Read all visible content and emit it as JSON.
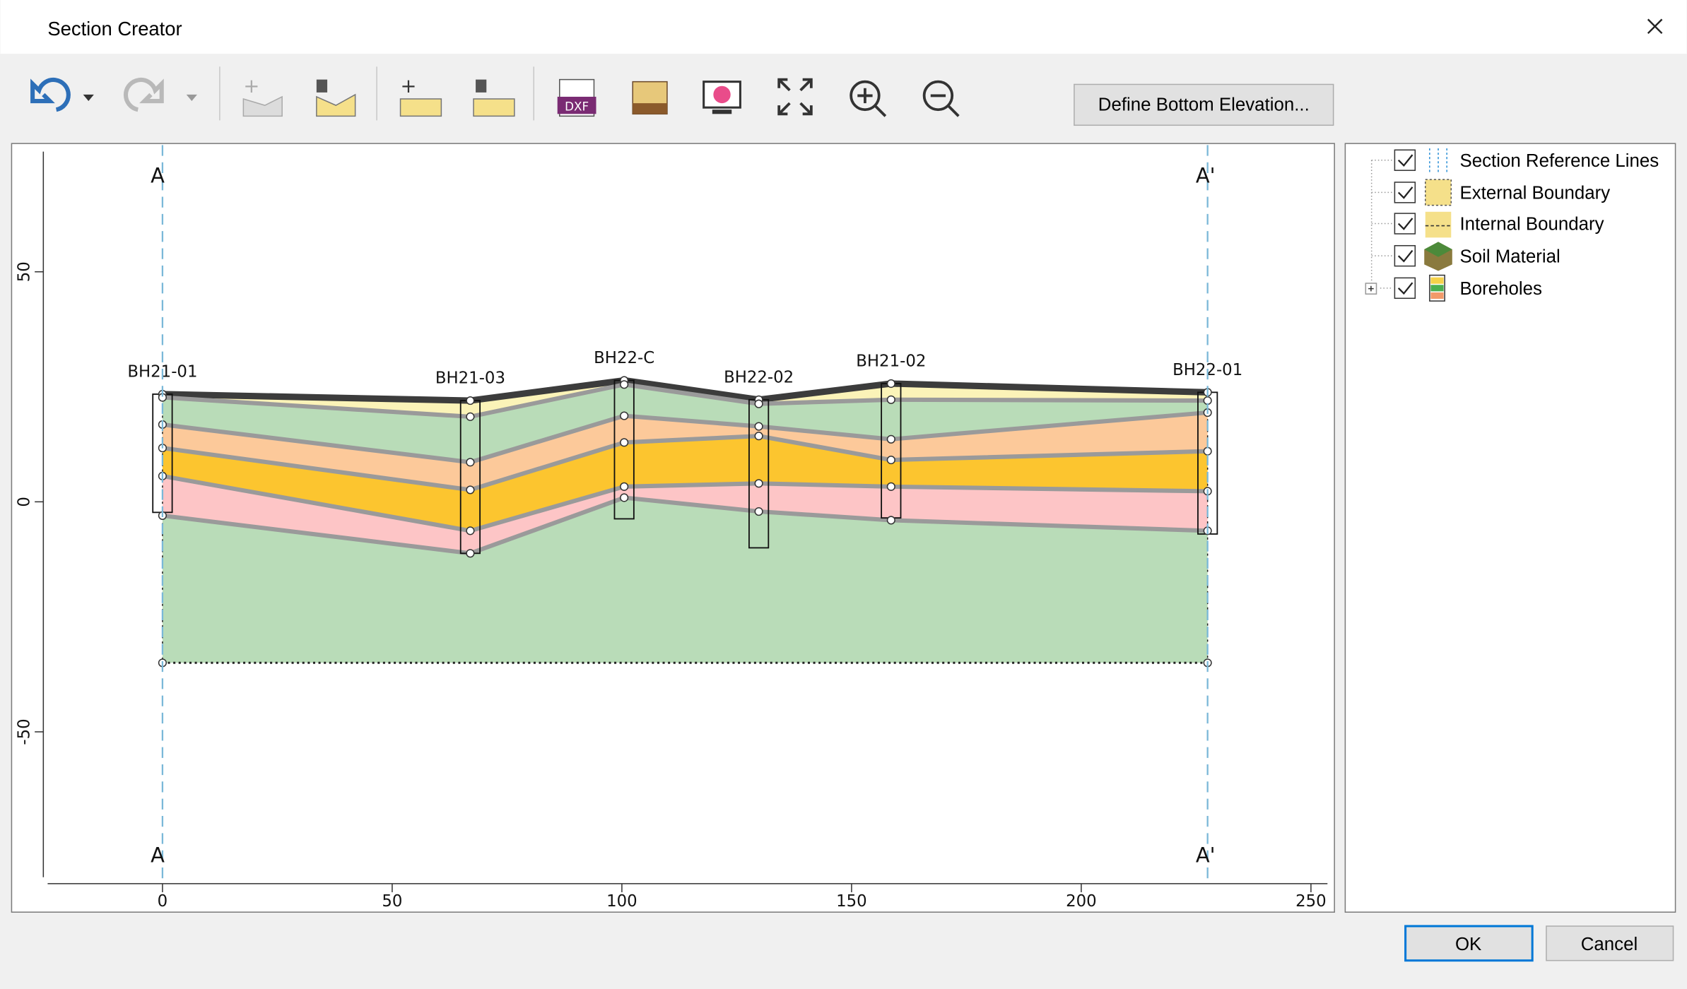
{
  "window": {
    "title": "Section Creator"
  },
  "toolbar": {
    "define_bottom_button": "Define Bottom Elevation..."
  },
  "chart_data": {
    "type": "section",
    "section_labels": {
      "start": "A",
      "end": "A'"
    },
    "section_line_x": [
      0,
      227.5
    ],
    "boreholes": {
      "names": [
        "BH21-01",
        "BH21-03",
        "BH22-C",
        "BH22-02",
        "BH21-02",
        "BH22-01"
      ],
      "x": [
        0,
        67,
        100.5,
        129.8,
        158.6,
        227.5
      ],
      "bottom": [
        -2.3,
        -11.2,
        -3.7,
        -10,
        -3.5,
        -7
      ]
    },
    "surfaces": [
      {
        "color": "#3c3c3c",
        "values": [
          23.4,
          22,
          26.4,
          22.2,
          25.7,
          23.8
        ]
      },
      {
        "color": "#9a9a9a",
        "values": [
          22.7,
          18.5,
          25.5,
          21.3,
          22.2,
          22
        ]
      },
      {
        "color": "#9a9a9a",
        "values": [
          16.8,
          8.6,
          18.7,
          16.4,
          13.6,
          19.4
        ]
      },
      {
        "color": "#9a9a9a",
        "values": [
          11.7,
          2.6,
          12.9,
          14.3,
          9.1,
          11
        ]
      },
      {
        "color": "#9a9a9a",
        "values": [
          5.6,
          -6.3,
          3.3,
          4,
          3.3,
          2.3
        ]
      },
      {
        "color": "#9a9a9a",
        "values": [
          -3,
          -11.2,
          0.9,
          -2.1,
          -4,
          -6.3
        ]
      }
    ],
    "layer_colors": [
      "#fbf3b8",
      "#b9dcb8",
      "#fcc99a",
      "#fcc52f",
      "#fdc5c6",
      "#b9dcb8"
    ],
    "bottom_elevation": -35,
    "xlim": [
      -25,
      255
    ],
    "xticks": [
      0,
      50,
      100,
      150,
      200,
      250
    ],
    "ylim": [
      -83,
      78
    ],
    "yticks": [
      -50,
      0,
      50
    ]
  },
  "tree": {
    "items": [
      "Section Reference Lines",
      "External Boundary",
      "Internal Boundary",
      "Soil Material",
      "Boreholes"
    ]
  },
  "buttons": {
    "ok": "OK",
    "cancel": "Cancel"
  }
}
